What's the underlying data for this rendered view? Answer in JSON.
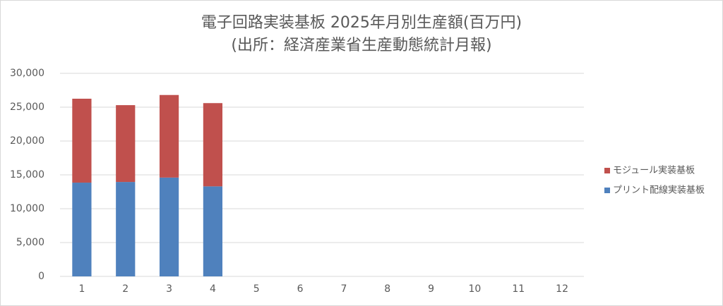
{
  "chart_data": {
    "type": "stacked-bar",
    "title": "電子回路実装基板 2025年月別生産額(百万円)",
    "subtitle": "(出所：経済産業省生産動態統計月報)",
    "categories": [
      "1",
      "2",
      "3",
      "4",
      "5",
      "6",
      "7",
      "8",
      "9",
      "10",
      "11",
      "12"
    ],
    "series": [
      {
        "name": "プリント配線実装基板",
        "color": "#4f81bd",
        "values": [
          13850,
          13950,
          14600,
          13300,
          null,
          null,
          null,
          null,
          null,
          null,
          null,
          null
        ]
      },
      {
        "name": "モジュール実装基板",
        "color": "#c0504d",
        "values": [
          12400,
          11350,
          12200,
          12300,
          null,
          null,
          null,
          null,
          null,
          null,
          null,
          null
        ]
      }
    ],
    "ylim": [
      0,
      30000
    ],
    "yticks": [
      0,
      {
        "value": 5000,
        "label": "5,000"
      },
      {
        "value": 10000,
        "label": "10,000"
      },
      {
        "value": 15000,
        "label": "15,000"
      },
      {
        "value": 20000,
        "label": "20,000"
      },
      {
        "value": 25000,
        "label": "25,000"
      },
      {
        "value": 30000,
        "label": "30,000"
      }
    ],
    "grid": true,
    "legend": "right"
  }
}
